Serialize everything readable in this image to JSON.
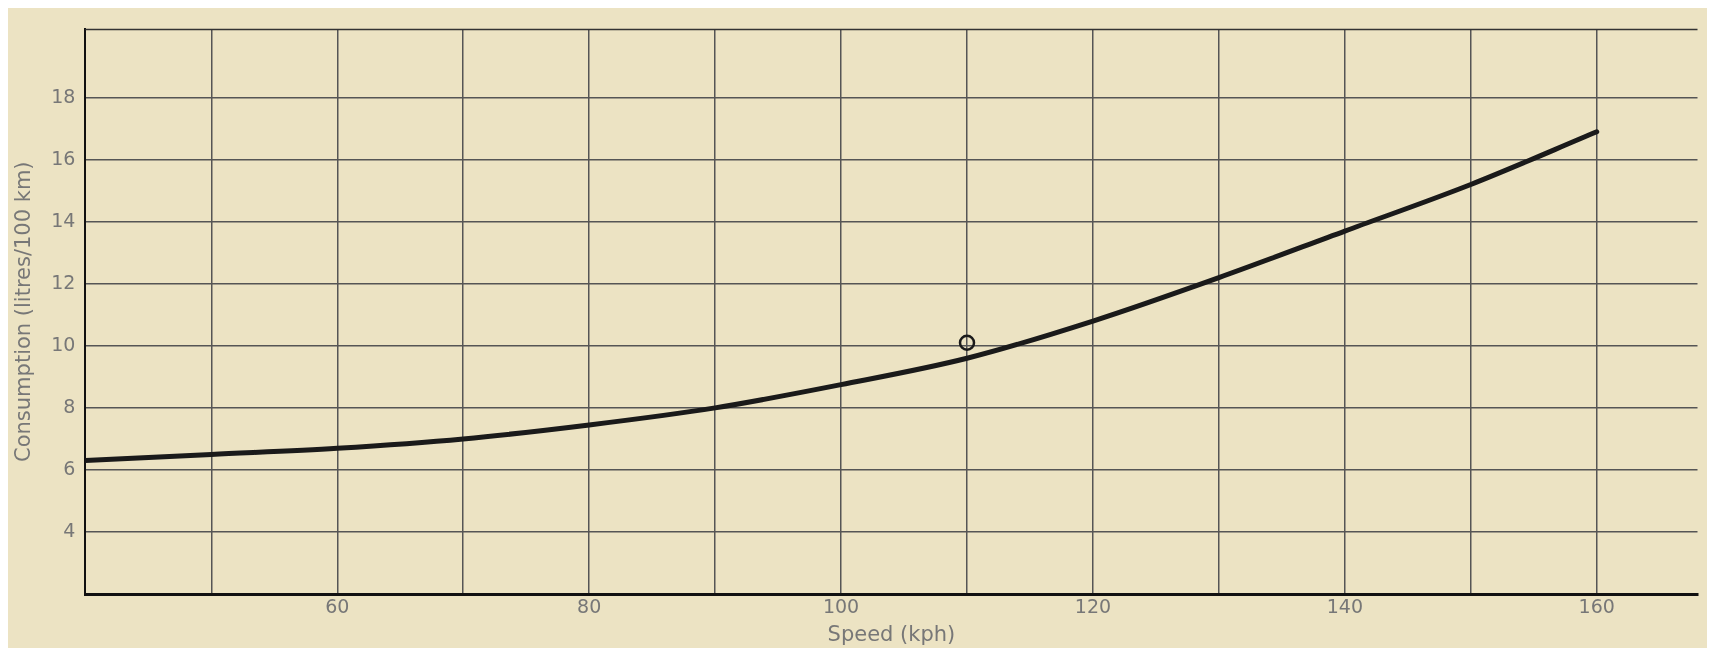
{
  "chart_data": {
    "type": "line",
    "xlabel": "Speed (kph)",
    "ylabel": "Consumption (litres/100 km)",
    "xlim": [
      40,
      168
    ],
    "ylim": [
      2,
      20.2
    ],
    "xticks": [
      {
        "value": 50,
        "label": null
      },
      60,
      {
        "value": 70,
        "label": null
      },
      80,
      {
        "value": 90,
        "label": null
      },
      100,
      {
        "value": 110,
        "label": null
      },
      120,
      {
        "value": 130,
        "label": null
      },
      140,
      {
        "value": 150,
        "label": null
      },
      160
    ],
    "yticks": [
      4,
      6,
      8,
      10,
      12,
      14,
      16,
      18
    ],
    "grid": true,
    "legend": false,
    "series": [
      {
        "color": "#1a1a1a",
        "marker": "none",
        "line_style": "solid",
        "x": [
          40,
          50,
          60,
          70,
          80,
          90,
          100,
          110,
          120,
          130,
          140,
          150,
          160
        ],
        "values": [
          6.3,
          6.5,
          6.7,
          7.0,
          7.45,
          8.0,
          8.75,
          9.6,
          10.8,
          12.2,
          13.7,
          15.2,
          16.9
        ]
      },
      {
        "type": "scatter",
        "color": "#1a1a1a",
        "marker": "circle",
        "x": [
          110
        ],
        "values": [
          10.1
        ]
      }
    ]
  }
}
